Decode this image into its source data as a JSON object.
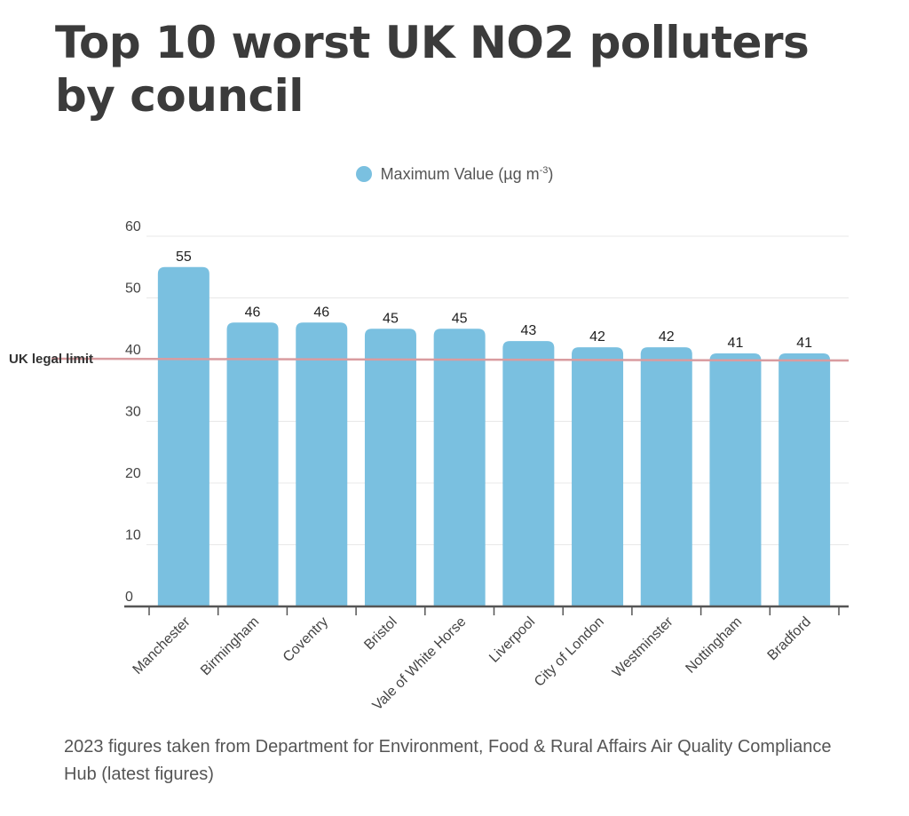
{
  "title_lines": [
    "Top 10 worst UK NO2 polluters",
    "by council"
  ],
  "legend": {
    "label_prefix": "Maximum Value (µg m",
    "label_sup": "-3",
    "label_suffix": ")"
  },
  "colors": {
    "bar": "#7ac0e0",
    "limit_line": "#d99ca0",
    "grid": "#e8e8e8",
    "axis": "#555555",
    "tick_text": "#444444"
  },
  "chart_data": {
    "type": "bar",
    "categories": [
      "Manchester",
      "Birmingham",
      "Coventry",
      "Bristol",
      "Vale of White Horse",
      "Liverpool",
      "City of London",
      "Westminster",
      "Nottingham",
      "Bradford"
    ],
    "series": [
      {
        "name": "Maximum Value (µg m-3)",
        "values": [
          55,
          46,
          46,
          45,
          45,
          43,
          42,
          42,
          41,
          41
        ]
      }
    ],
    "ylim": [
      0,
      60
    ],
    "yticks": [
      0,
      10,
      20,
      30,
      40,
      50,
      60
    ],
    "grid": true,
    "legend_position": "top-center",
    "reference_line": {
      "label": "UK legal limit",
      "value": 40
    }
  },
  "footnote": "2023 figures taken from Department for Environment, Food & Rural Affairs Air Quality Compliance Hub (latest figures)"
}
